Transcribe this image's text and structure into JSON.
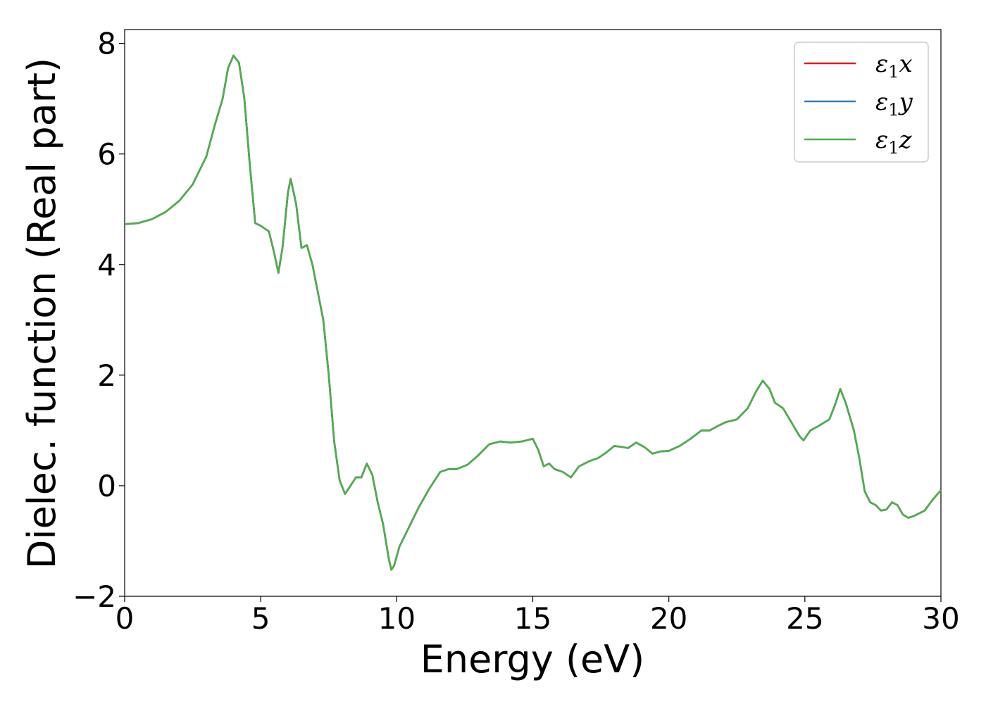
{
  "chart_data": {
    "type": "line",
    "title": "",
    "xlabel": "Energy (eV)",
    "ylabel": "Dielec. function (Real part)",
    "xlim": [
      0,
      30
    ],
    "ylim": [
      -2,
      8.25
    ],
    "xticks": [
      0,
      5,
      10,
      15,
      20,
      25,
      30
    ],
    "xtick_labels": [
      "0",
      "5",
      "10",
      "15",
      "20",
      "25",
      "30"
    ],
    "yticks": [
      -2,
      0,
      2,
      4,
      6,
      8
    ],
    "ytick_labels": [
      "−2",
      "0",
      "2",
      "4",
      "6",
      "8"
    ],
    "grid": false,
    "legend_position": "top-right",
    "series": [
      {
        "name": "ε1x",
        "label_base": "ε",
        "label_sub": "1",
        "label_var": "x",
        "color": "#e41a1c",
        "points": []
      },
      {
        "name": "ε1y",
        "label_base": "ε",
        "label_sub": "1",
        "label_var": "y",
        "color": "#377eb8",
        "points": []
      },
      {
        "name": "ε1z",
        "label_base": "ε",
        "label_sub": "1",
        "label_var": "z",
        "color": "#4daf4a",
        "points": [
          [
            0,
            4.73
          ],
          [
            0.5,
            4.75
          ],
          [
            1,
            4.82
          ],
          [
            1.5,
            4.95
          ],
          [
            2,
            5.15
          ],
          [
            2.5,
            5.45
          ],
          [
            3,
            5.95
          ],
          [
            3.3,
            6.5
          ],
          [
            3.6,
            7.0
          ],
          [
            3.8,
            7.55
          ],
          [
            4,
            7.78
          ],
          [
            4.2,
            7.65
          ],
          [
            4.4,
            7.0
          ],
          [
            4.6,
            5.8
          ],
          [
            4.8,
            4.75
          ],
          [
            5,
            4.7
          ],
          [
            5.3,
            4.6
          ],
          [
            5.5,
            4.2
          ],
          [
            5.65,
            3.85
          ],
          [
            5.8,
            4.3
          ],
          [
            6.0,
            5.3
          ],
          [
            6.1,
            5.55
          ],
          [
            6.3,
            5.1
          ],
          [
            6.5,
            4.3
          ],
          [
            6.7,
            4.35
          ],
          [
            6.9,
            4.0
          ],
          [
            7.1,
            3.5
          ],
          [
            7.3,
            3.0
          ],
          [
            7.5,
            2.0
          ],
          [
            7.7,
            0.8
          ],
          [
            7.9,
            0.1
          ],
          [
            8.1,
            -0.15
          ],
          [
            8.3,
            0.0
          ],
          [
            8.5,
            0.15
          ],
          [
            8.7,
            0.15
          ],
          [
            8.9,
            0.4
          ],
          [
            9.1,
            0.2
          ],
          [
            9.3,
            -0.3
          ],
          [
            9.5,
            -0.7
          ],
          [
            9.7,
            -1.3
          ],
          [
            9.8,
            -1.52
          ],
          [
            9.9,
            -1.45
          ],
          [
            10.1,
            -1.1
          ],
          [
            10.4,
            -0.8
          ],
          [
            10.8,
            -0.4
          ],
          [
            11.2,
            -0.05
          ],
          [
            11.6,
            0.25
          ],
          [
            11.9,
            0.3
          ],
          [
            12.2,
            0.3
          ],
          [
            12.6,
            0.38
          ],
          [
            13.0,
            0.55
          ],
          [
            13.4,
            0.75
          ],
          [
            13.8,
            0.8
          ],
          [
            14.2,
            0.78
          ],
          [
            14.6,
            0.8
          ],
          [
            15.0,
            0.85
          ],
          [
            15.2,
            0.65
          ],
          [
            15.4,
            0.35
          ],
          [
            15.6,
            0.4
          ],
          [
            15.8,
            0.3
          ],
          [
            16.1,
            0.25
          ],
          [
            16.4,
            0.15
          ],
          [
            16.7,
            0.35
          ],
          [
            17.1,
            0.45
          ],
          [
            17.4,
            0.5
          ],
          [
            17.7,
            0.6
          ],
          [
            18.0,
            0.72
          ],
          [
            18.3,
            0.7
          ],
          [
            18.5,
            0.68
          ],
          [
            18.8,
            0.78
          ],
          [
            19.1,
            0.7
          ],
          [
            19.4,
            0.58
          ],
          [
            19.7,
            0.62
          ],
          [
            20.0,
            0.63
          ],
          [
            20.4,
            0.72
          ],
          [
            20.8,
            0.85
          ],
          [
            21.2,
            1.0
          ],
          [
            21.5,
            1.0
          ],
          [
            21.8,
            1.08
          ],
          [
            22.1,
            1.15
          ],
          [
            22.5,
            1.2
          ],
          [
            22.9,
            1.4
          ],
          [
            23.2,
            1.7
          ],
          [
            23.45,
            1.9
          ],
          [
            23.7,
            1.75
          ],
          [
            23.9,
            1.5
          ],
          [
            24.2,
            1.4
          ],
          [
            24.5,
            1.15
          ],
          [
            24.8,
            0.9
          ],
          [
            24.95,
            0.82
          ],
          [
            25.2,
            1.0
          ],
          [
            25.5,
            1.08
          ],
          [
            25.9,
            1.2
          ],
          [
            26.1,
            1.45
          ],
          [
            26.3,
            1.75
          ],
          [
            26.5,
            1.5
          ],
          [
            26.8,
            1.0
          ],
          [
            27.0,
            0.5
          ],
          [
            27.2,
            -0.1
          ],
          [
            27.4,
            -0.3
          ],
          [
            27.6,
            -0.35
          ],
          [
            27.8,
            -0.45
          ],
          [
            28.0,
            -0.43
          ],
          [
            28.2,
            -0.3
          ],
          [
            28.4,
            -0.35
          ],
          [
            28.6,
            -0.52
          ],
          [
            28.8,
            -0.58
          ],
          [
            29.0,
            -0.55
          ],
          [
            29.4,
            -0.45
          ],
          [
            29.7,
            -0.25
          ],
          [
            30,
            -0.08
          ]
        ]
      }
    ]
  }
}
